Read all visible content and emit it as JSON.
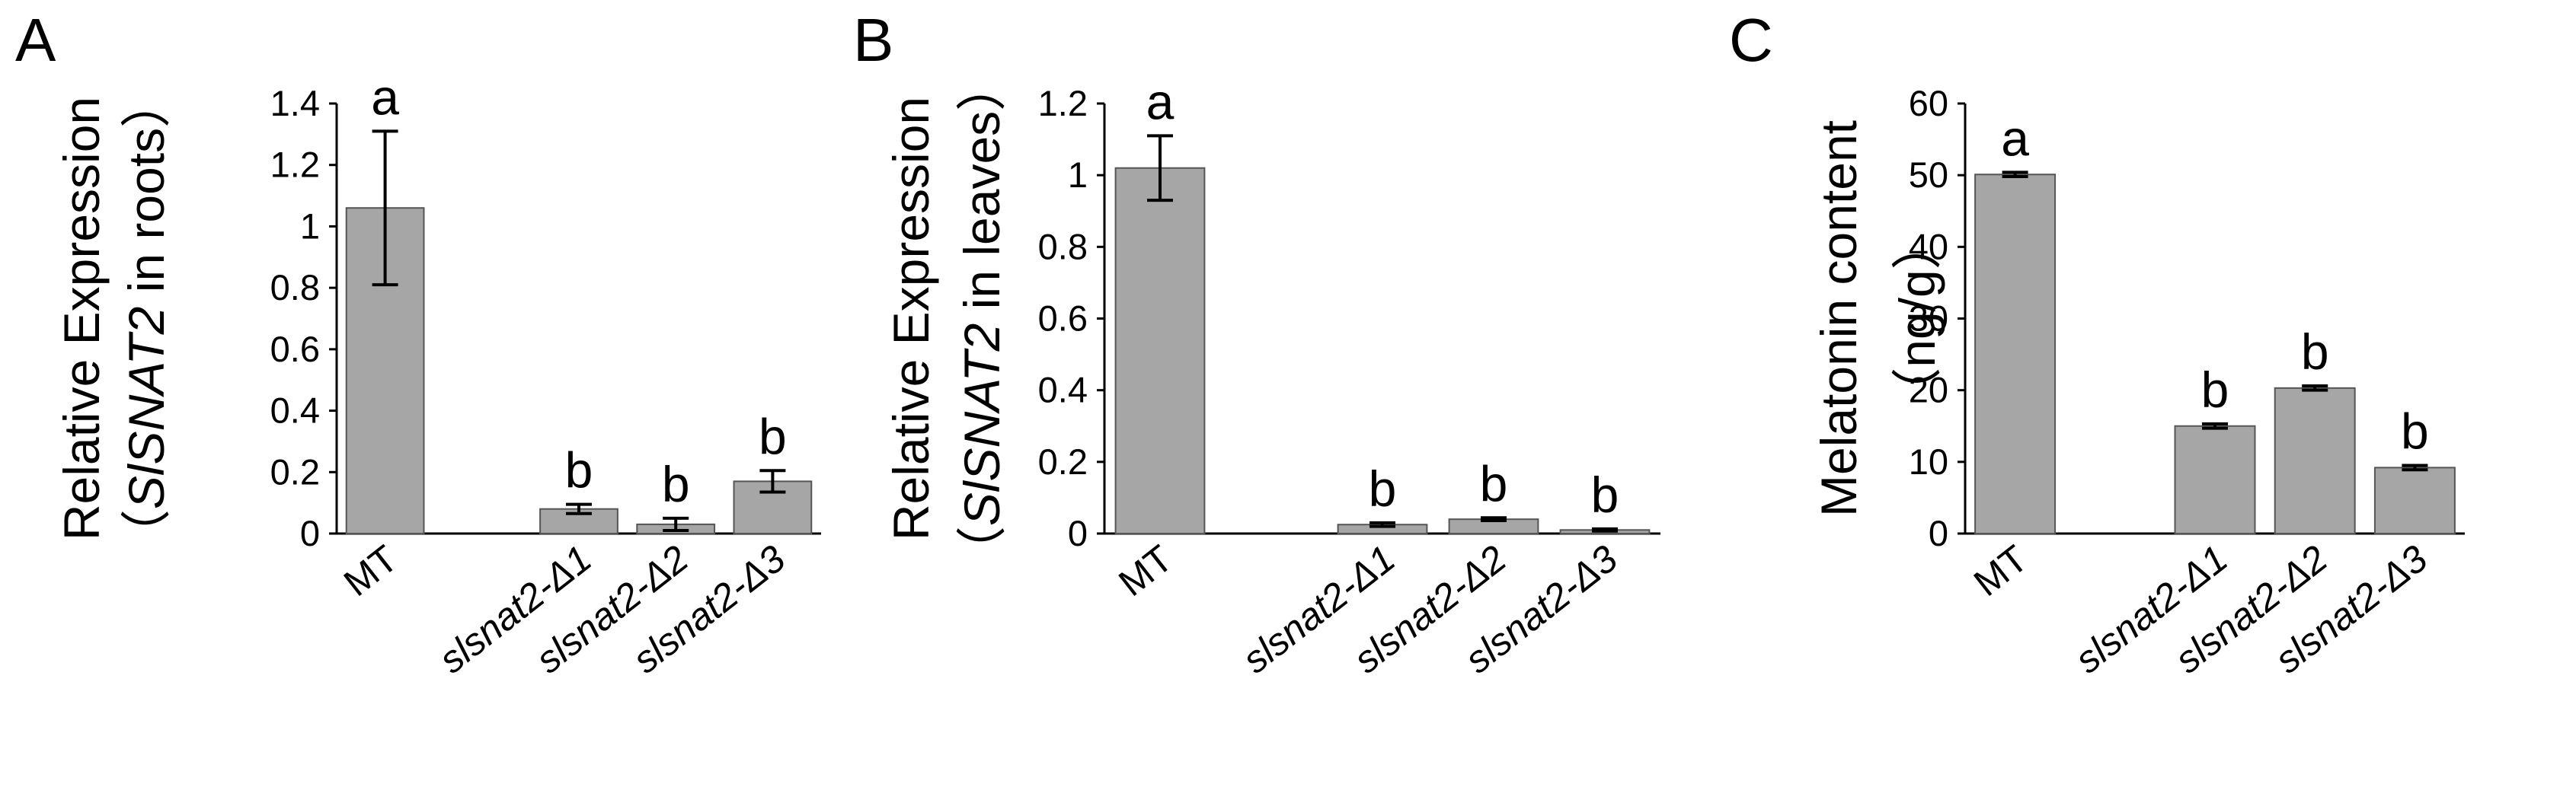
{
  "chart_data": [
    {
      "type": "bar",
      "panel_label": "A",
      "ylabel_lines": [
        "Relative Expression",
        [
          "（",
          "SlSNAT2",
          " in roots）"
        ]
      ],
      "categories": [
        "MT",
        null,
        "slsnat2-Δ1",
        "slsnat2-Δ2",
        "slsnat2-Δ3"
      ],
      "values": [
        1.06,
        null,
        0.08,
        0.03,
        0.17
      ],
      "errors": [
        0.25,
        null,
        0.015,
        0.02,
        0.035
      ],
      "sig_labels": [
        "a",
        null,
        "b",
        "b",
        "b"
      ],
      "color": "#a6a6a6",
      "ylim": [
        0,
        1.4
      ],
      "yticks": [
        0,
        0.2,
        0.4,
        0.6,
        0.8,
        1,
        1.2,
        1.4
      ]
    },
    {
      "type": "bar",
      "panel_label": "B",
      "ylabel_lines": [
        "Relative Expression",
        [
          "（",
          "SlSNAT2",
          " in leaves）"
        ]
      ],
      "categories": [
        "MT",
        null,
        "slsnat2-Δ1",
        "slsnat2-Δ2",
        "slsnat2-Δ3"
      ],
      "values": [
        1.02,
        null,
        0.025,
        0.04,
        0.01
      ],
      "errors": [
        0.09,
        null,
        0.005,
        0.004,
        0.003
      ],
      "sig_labels": [
        "a",
        null,
        "b",
        "b",
        "b"
      ],
      "color": "#a6a6a6",
      "ylim": [
        0,
        1.2
      ],
      "yticks": [
        0,
        0.2,
        0.4,
        0.6,
        0.8,
        1,
        1.2
      ]
    },
    {
      "type": "bar",
      "panel_label": "C",
      "ylabel_lines": [
        "Melatonin content",
        [
          "（ng/g）"
        ]
      ],
      "categories": [
        "MT",
        null,
        "slsnat2-Δ1",
        "slsnat2-Δ2",
        "slsnat2-Δ3"
      ],
      "values": [
        50.1,
        null,
        15,
        20.3,
        9.2
      ],
      "errors": [
        0.3,
        null,
        0.3,
        0.3,
        0.3
      ],
      "sig_labels": [
        "a",
        null,
        "b",
        "b",
        "b"
      ],
      "color": "#a6a6a6",
      "ylim": [
        0,
        60
      ],
      "yticks": [
        0,
        10,
        20,
        30,
        40,
        50,
        60
      ]
    }
  ]
}
